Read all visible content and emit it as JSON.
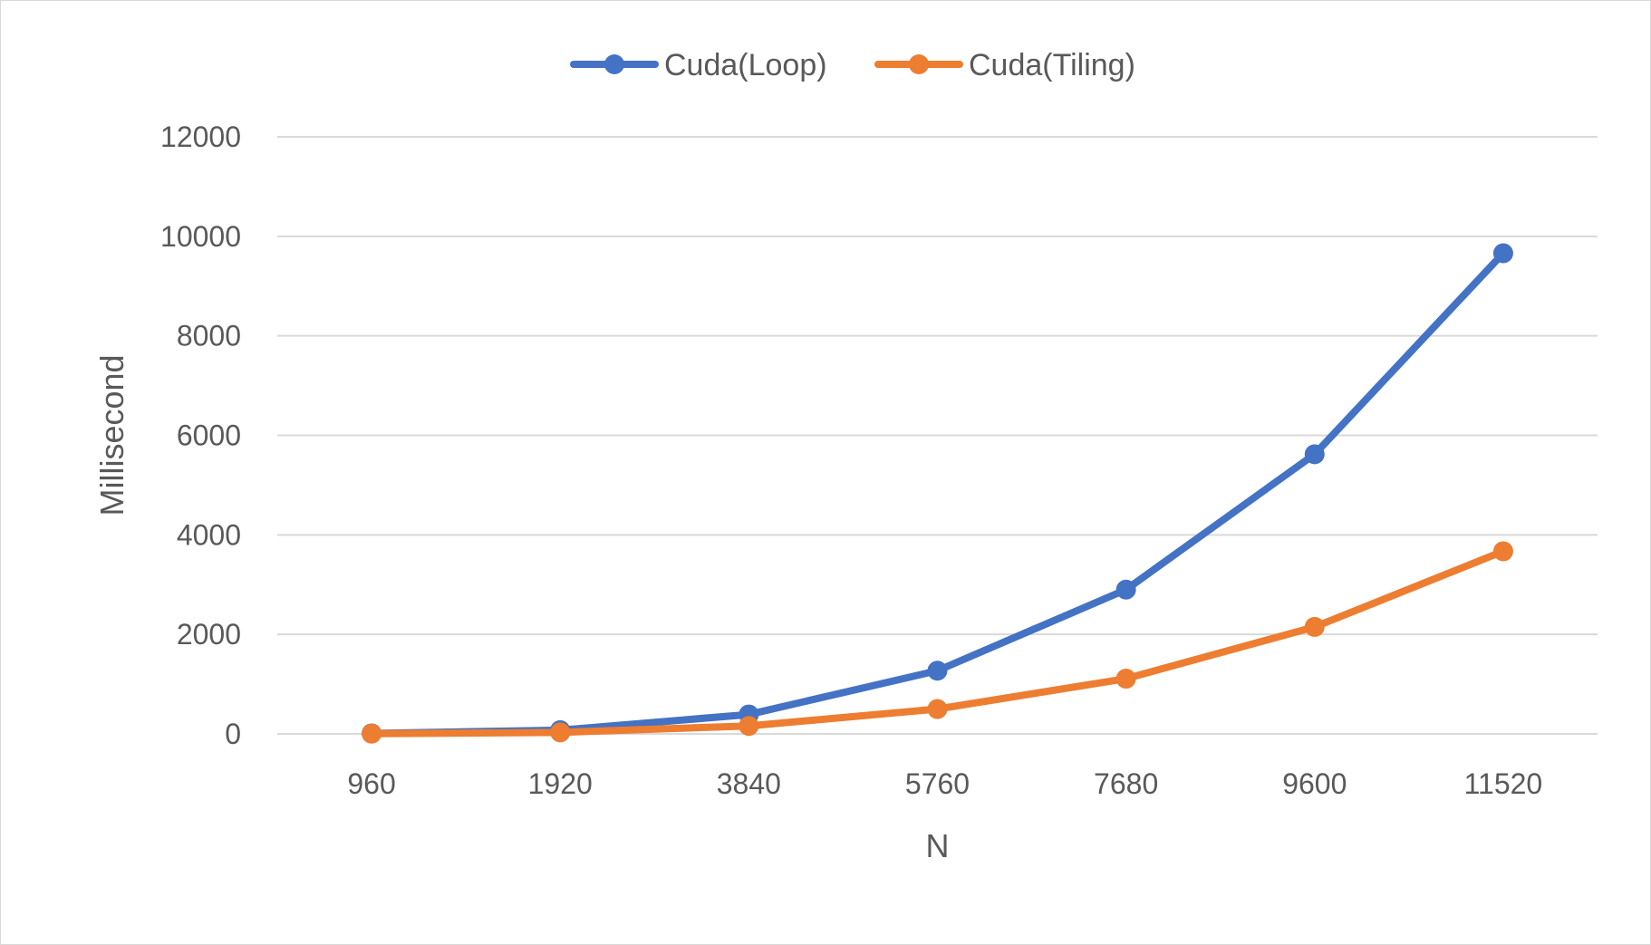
{
  "chart_data": {
    "type": "line",
    "categories": [
      "960",
      "1920",
      "3840",
      "5760",
      "7680",
      "9600",
      "11520"
    ],
    "series": [
      {
        "name": "Cuda(Loop)",
        "color": "#4472c4",
        "values": [
          10,
          75,
          390,
          1270,
          2900,
          5620,
          9660
        ]
      },
      {
        "name": "Cuda(Tiling)",
        "color": "#ed7d31",
        "values": [
          5,
          30,
          160,
          500,
          1110,
          2150,
          3670
        ]
      }
    ],
    "title": "",
    "xlabel": "N",
    "ylabel": "Millisecond",
    "ylim": [
      0,
      12000
    ],
    "yticks": [
      0,
      2000,
      4000,
      6000,
      8000,
      10000,
      12000
    ],
    "grid": true,
    "legend_position": "top-center"
  }
}
